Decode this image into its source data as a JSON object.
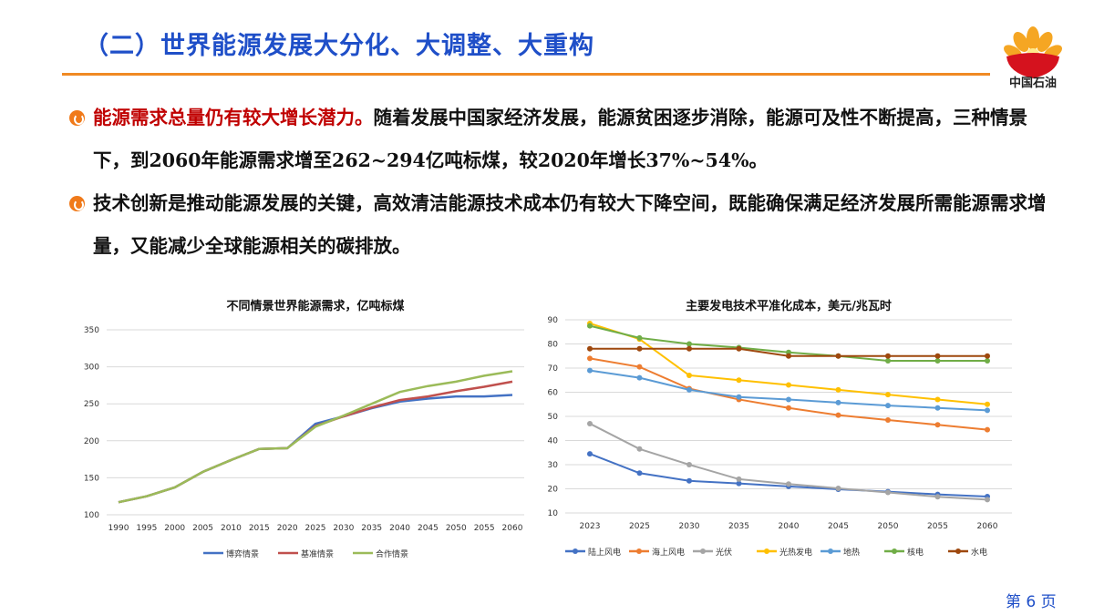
{
  "header": {
    "title": "（二）世界能源发展大分化、大调整、大重构",
    "logo_text": "中国石油"
  },
  "bullets": [
    {
      "highlight": "能源需求总量仍有较大增长潜力。",
      "text": "随着发展中国家经济发展，能源贫困逐步消除，能源可及性不断提高，三种情景下，到2060年能源需求增至262~294亿吨标煤，较2020年增长37%~54%。"
    },
    {
      "highlight": "",
      "text": "技术创新是推动能源发展的关键，高效清洁能源技术成本仍有较大下降空间，既能确保满足经济发展所需能源需求增量，又能减少全球能源相关的碳排放。"
    }
  ],
  "page": "第 6 页",
  "chart_data": [
    {
      "type": "line",
      "title": "不同情景世界能源需求，亿吨标煤",
      "ylim": [
        100,
        350
      ],
      "yticks": [
        100,
        150,
        200,
        250,
        300,
        350
      ],
      "categories": [
        "1990",
        "1995",
        "2000",
        "2005",
        "2010",
        "2015",
        "2020",
        "2025",
        "2030",
        "2035",
        "2040",
        "2045",
        "2050",
        "2055",
        "2060"
      ],
      "grid": true,
      "legend": "bottom",
      "series": [
        {
          "name": "博弈情景",
          "color": "#4472c4",
          "values": [
            117,
            125,
            137,
            158,
            174,
            189,
            190,
            223,
            233,
            244,
            253,
            257,
            260,
            260,
            262
          ]
        },
        {
          "name": "基准情景",
          "color": "#c0504d",
          "values": [
            117,
            125,
            137,
            158,
            174,
            189,
            190,
            220,
            233,
            245,
            255,
            260,
            267,
            273,
            280
          ]
        },
        {
          "name": "合作情景",
          "color": "#9bbb59",
          "values": [
            117,
            125,
            137,
            158,
            174,
            189,
            190,
            219,
            234,
            250,
            266,
            274,
            280,
            288,
            294
          ]
        }
      ]
    },
    {
      "type": "line",
      "title": "主要发电技术平准化成本，美元/兆瓦时",
      "ylim": [
        10,
        90
      ],
      "yticks": [
        10,
        20,
        30,
        40,
        50,
        60,
        70,
        80,
        90
      ],
      "categories": [
        "2023",
        "2025",
        "2030",
        "2035",
        "2040",
        "2045",
        "2050",
        "2055",
        "2060"
      ],
      "grid": true,
      "legend": "bottom",
      "series": [
        {
          "name": "陆上风电",
          "color": "#4472c4",
          "values": [
            34.5,
            26.5,
            23.3,
            22.2,
            21,
            19.8,
            18.8,
            17.7,
            16.8
          ]
        },
        {
          "name": "海上风电",
          "color": "#ed7d31",
          "values": [
            74,
            70.5,
            61.5,
            57,
            53.5,
            50.5,
            48.5,
            46.5,
            44.5
          ]
        },
        {
          "name": "光伏",
          "color": "#a5a5a5",
          "values": [
            47,
            36.5,
            30,
            24,
            22,
            20.2,
            18.5,
            16.7,
            15.5
          ]
        },
        {
          "name": "光热发电",
          "color": "#ffc000",
          "values": [
            88.5,
            82,
            67,
            65,
            63,
            61,
            59,
            57,
            55
          ]
        },
        {
          "name": "地热",
          "color": "#5b9bd5",
          "values": [
            69,
            66,
            61,
            58,
            57,
            55.7,
            54.5,
            53.5,
            52.5
          ]
        },
        {
          "name": "核电",
          "color": "#70ad47",
          "values": [
            87.5,
            82.5,
            80,
            78.5,
            76.5,
            75,
            73,
            73,
            73
          ]
        },
        {
          "name": "水电",
          "color": "#9e480e",
          "values": [
            78,
            78,
            78,
            78,
            75,
            75,
            75,
            75,
            75
          ]
        }
      ]
    }
  ]
}
